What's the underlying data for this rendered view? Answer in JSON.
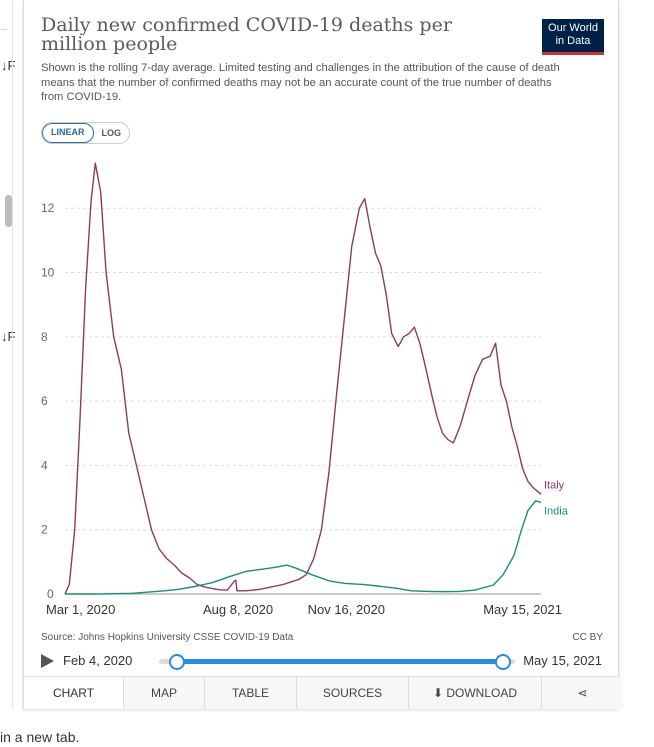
{
  "header": {
    "title": "Daily new confirmed COVID-19 deaths per million people",
    "subtitle": "Shown is the rolling 7-day average. Limited testing and challenges in the attribution of the cause of death means that the number of confirmed deaths may not be an accurate count of the true number of deaths from COVID-19.",
    "logo_line1": "Our World",
    "logo_line2": "in Data"
  },
  "scale_toggle": {
    "linear": "LINEAR",
    "log": "LOG",
    "selected": "linear"
  },
  "colors": {
    "italy": "#883d5c",
    "india": "#1d8a7f",
    "accent": "#2c8be0",
    "logo_bg": "#002147"
  },
  "chart_data": {
    "type": "line",
    "title": "Daily new confirmed COVID-19 deaths per million people",
    "ylim": [
      0,
      13.5
    ],
    "yticks": [
      0,
      2,
      4,
      6,
      8,
      10,
      12
    ],
    "xticks": [
      "Mar 1, 2020",
      "Aug 8, 2020",
      "Nov 16, 2020",
      "May 15, 2021"
    ],
    "x_range": [
      "2020-03-01",
      "2021-05-15"
    ],
    "grid": true,
    "series": [
      {
        "name": "Italy",
        "points": [
          [
            "2020-03-01",
            0
          ],
          [
            "2020-03-05",
            0.3
          ],
          [
            "2020-03-10",
            2.0
          ],
          [
            "2020-03-15",
            5.5
          ],
          [
            "2020-03-20",
            9.5
          ],
          [
            "2020-03-25",
            12.2
          ],
          [
            "2020-03-29",
            13.4
          ],
          [
            "2020-04-03",
            12.5
          ],
          [
            "2020-04-08",
            10.0
          ],
          [
            "2020-04-15",
            8.0
          ],
          [
            "2020-04-22",
            7.0
          ],
          [
            "2020-04-29",
            5.0
          ],
          [
            "2020-05-06",
            4.0
          ],
          [
            "2020-05-13",
            3.0
          ],
          [
            "2020-05-20",
            2.0
          ],
          [
            "2020-05-27",
            1.4
          ],
          [
            "2020-06-03",
            1.1
          ],
          [
            "2020-06-10",
            0.9
          ],
          [
            "2020-06-17",
            0.65
          ],
          [
            "2020-06-24",
            0.5
          ],
          [
            "2020-07-01",
            0.3
          ],
          [
            "2020-07-08",
            0.22
          ],
          [
            "2020-07-15",
            0.17
          ],
          [
            "2020-07-22",
            0.13
          ],
          [
            "2020-07-29",
            0.12
          ],
          [
            "2020-08-05",
            0.42
          ],
          [
            "2020-08-06",
            0.42
          ],
          [
            "2020-08-07",
            0.1
          ],
          [
            "2020-08-15",
            0.1
          ],
          [
            "2020-08-22",
            0.12
          ],
          [
            "2020-08-29",
            0.15
          ],
          [
            "2020-09-05",
            0.2
          ],
          [
            "2020-09-12",
            0.25
          ],
          [
            "2020-09-19",
            0.3
          ],
          [
            "2020-09-26",
            0.38
          ],
          [
            "2020-10-03",
            0.45
          ],
          [
            "2020-10-10",
            0.6
          ],
          [
            "2020-10-17",
            1.1
          ],
          [
            "2020-10-24",
            2.0
          ],
          [
            "2020-10-31",
            3.8
          ],
          [
            "2020-11-07",
            6.2
          ],
          [
            "2020-11-14",
            8.5
          ],
          [
            "2020-11-21",
            10.8
          ],
          [
            "2020-11-28",
            12.0
          ],
          [
            "2020-12-03",
            12.3
          ],
          [
            "2020-12-08",
            11.4
          ],
          [
            "2020-12-13",
            10.6
          ],
          [
            "2020-12-18",
            10.2
          ],
          [
            "2020-12-23",
            9.3
          ],
          [
            "2020-12-28",
            8.1
          ],
          [
            "2021-01-03",
            7.7
          ],
          [
            "2021-01-08",
            8.0
          ],
          [
            "2021-01-13",
            8.1
          ],
          [
            "2021-01-18",
            8.3
          ],
          [
            "2021-01-23",
            7.8
          ],
          [
            "2021-01-28",
            7.1
          ],
          [
            "2021-02-03",
            6.2
          ],
          [
            "2021-02-08",
            5.5
          ],
          [
            "2021-02-13",
            5.0
          ],
          [
            "2021-02-18",
            4.8
          ],
          [
            "2021-02-23",
            4.7
          ],
          [
            "2021-03-01",
            5.2
          ],
          [
            "2021-03-08",
            6.0
          ],
          [
            "2021-03-15",
            6.8
          ],
          [
            "2021-03-22",
            7.3
          ],
          [
            "2021-03-29",
            7.4
          ],
          [
            "2021-04-03",
            7.8
          ],
          [
            "2021-04-08",
            6.5
          ],
          [
            "2021-04-13",
            6.0
          ],
          [
            "2021-04-18",
            5.2
          ],
          [
            "2021-04-23",
            4.6
          ],
          [
            "2021-04-28",
            3.9
          ],
          [
            "2021-05-03",
            3.5
          ],
          [
            "2021-05-08",
            3.3
          ],
          [
            "2021-05-15",
            3.1
          ]
        ]
      },
      {
        "name": "India",
        "points": [
          [
            "2020-03-01",
            0
          ],
          [
            "2020-04-01",
            0
          ],
          [
            "2020-05-01",
            0.02
          ],
          [
            "2020-06-01",
            0.1
          ],
          [
            "2020-06-15",
            0.15
          ],
          [
            "2020-07-01",
            0.25
          ],
          [
            "2020-07-15",
            0.35
          ],
          [
            "2020-08-01",
            0.55
          ],
          [
            "2020-08-15",
            0.7
          ],
          [
            "2020-09-01",
            0.78
          ],
          [
            "2020-09-15",
            0.85
          ],
          [
            "2020-09-22",
            0.9
          ],
          [
            "2020-10-01",
            0.8
          ],
          [
            "2020-10-15",
            0.6
          ],
          [
            "2020-11-01",
            0.4
          ],
          [
            "2020-11-15",
            0.33
          ],
          [
            "2020-12-01",
            0.3
          ],
          [
            "2020-12-15",
            0.25
          ],
          [
            "2021-01-01",
            0.18
          ],
          [
            "2021-01-15",
            0.1
          ],
          [
            "2021-02-01",
            0.08
          ],
          [
            "2021-02-15",
            0.07
          ],
          [
            "2021-03-01",
            0.08
          ],
          [
            "2021-03-15",
            0.12
          ],
          [
            "2021-04-01",
            0.28
          ],
          [
            "2021-04-10",
            0.6
          ],
          [
            "2021-04-20",
            1.2
          ],
          [
            "2021-04-27",
            2.0
          ],
          [
            "2021-05-03",
            2.6
          ],
          [
            "2021-05-10",
            2.9
          ],
          [
            "2021-05-15",
            2.85
          ]
        ]
      }
    ]
  },
  "footer": {
    "source": "Source: Johns Hopkins University CSSE COVID-19 Data",
    "license": "CC BY",
    "timeline_start": "Feb 4, 2020",
    "timeline_end": "May 15, 2021"
  },
  "tabs": [
    {
      "label": "CHART"
    },
    {
      "label": "MAP"
    },
    {
      "label": "TABLE"
    },
    {
      "label": "SOURCES"
    },
    {
      "label": "DOWNLOAD"
    }
  ],
  "left_strip": {
    "dots": "...",
    "sort_glyph": "↓F",
    "sort_glyph2": "↓F"
  },
  "page_tail": "in a new tab."
}
